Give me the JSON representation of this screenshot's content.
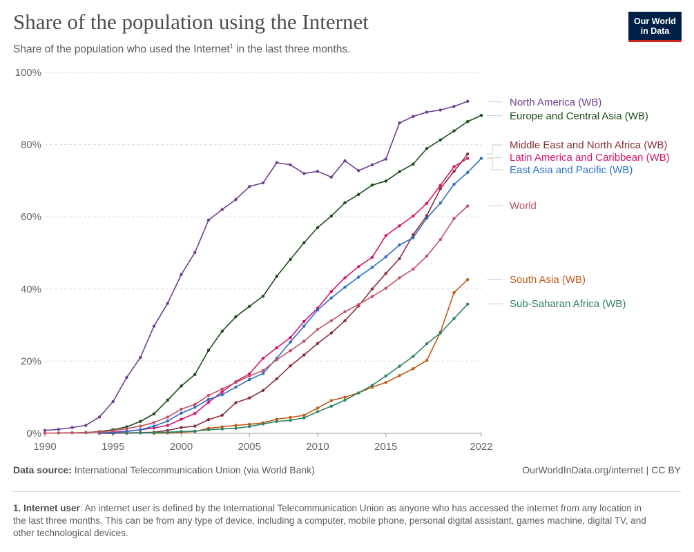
{
  "header": {
    "title": "Share of the population using the Internet",
    "subtitle_pre": "Share of the population who used the Internet",
    "subtitle_sup": "1",
    "subtitle_post": " in the last three months.",
    "logo_line1": "Our World",
    "logo_line2": "in Data"
  },
  "footer": {
    "source_label": "Data source:",
    "source_text": " International Telecommunication Union (via World Bank)",
    "url_license": "OurWorldInData.org/internet | CC BY",
    "footnote_label": "1. Internet user",
    "footnote_text": ": An internet user is defined by the International Telecommunication Union as anyone who has accessed the internet from any location in the last three months. This can be from any type of device, including a computer, mobile phone, personal digital assistant, games machine, digital TV, and other technological devices."
  },
  "chart_data": {
    "type": "line",
    "title": "Share of the population using the Internet",
    "xlim": [
      1990,
      2022
    ],
    "ylim": [
      0,
      100
    ],
    "x_ticks": [
      "1990",
      "1995",
      "2000",
      "2005",
      "2010",
      "2015",
      "2022"
    ],
    "x_tick_values": [
      1990,
      1995,
      2000,
      2005,
      2010,
      2015,
      2022
    ],
    "y_ticks": [
      "0%",
      "20%",
      "40%",
      "60%",
      "80%",
      "100%"
    ],
    "y_tick_values": [
      0,
      20,
      40,
      60,
      80,
      100
    ],
    "grid": "horizontal dashed",
    "legend": "right, inline labels",
    "series": [
      {
        "name": "North America (WB)",
        "color": "#6d3e91",
        "start": 1990,
        "values": [
          0.8,
          1.1,
          1.6,
          2.2,
          4.5,
          8.8,
          15.5,
          21,
          29.7,
          36,
          44,
          50.1,
          59.1,
          62,
          64.8,
          68.4,
          69.4,
          75,
          74.4,
          72,
          72.6,
          71,
          75.5,
          72.8,
          74.4,
          76,
          86,
          87.8,
          89,
          89.6,
          90.6,
          92
        ]
      },
      {
        "name": "Europe and Central Asia (WB)",
        "color": "#1a4d1a",
        "start": 1993,
        "values": [
          0.2,
          0.5,
          1.0,
          1.8,
          3.3,
          5.4,
          9.2,
          13.1,
          16.3,
          23,
          28.3,
          32.3,
          35.2,
          38,
          43.5,
          48.2,
          52.8,
          57,
          60.2,
          63.9,
          66.2,
          68.8,
          69.9,
          72.5,
          74.6,
          78.9,
          81.3,
          83.8,
          86.4,
          88.1
        ]
      },
      {
        "name": "Middle East and North Africa (WB)",
        "color": "#883039",
        "start": 1994,
        "values": [
          0,
          0,
          0.1,
          0.2,
          0.3,
          0.8,
          1.6,
          2.0,
          3.8,
          5.0,
          8.5,
          9.8,
          11.9,
          15.1,
          18.7,
          21.7,
          24.9,
          27.8,
          31.2,
          35.3,
          40,
          44.3,
          48.4,
          55,
          60.3,
          67.8,
          72.6,
          77.4
        ]
      },
      {
        "name": "Latin America and Caribbean (WB)",
        "color": "#d6136b",
        "start": 1994,
        "values": [
          0.1,
          0.3,
          0.6,
          1.0,
          1.5,
          2.2,
          3.9,
          5.5,
          8.6,
          11.5,
          14.3,
          16.5,
          20.8,
          23.7,
          26.5,
          31,
          34.7,
          39.3,
          43.1,
          46.2,
          48.8,
          54.8,
          57.5,
          60.2,
          63.7,
          68.7,
          73.9,
          76.2
        ]
      },
      {
        "name": "East Asia and Pacific (WB)",
        "color": "#2c6fc2",
        "start": 1994,
        "values": [
          0.1,
          0.2,
          0.5,
          1.0,
          2.0,
          3.4,
          5.6,
          7.2,
          9.4,
          10.7,
          12.8,
          14.9,
          16.6,
          20.8,
          25.3,
          29.7,
          34.2,
          37.5,
          40.5,
          43.3,
          46,
          48.9,
          52.2,
          54.2,
          59.6,
          63.8,
          69,
          72.3,
          76.2
        ]
      },
      {
        "name": "World",
        "color": "#c15065",
        "start": 1990,
        "values": [
          0.05,
          0.1,
          0.15,
          0.25,
          0.4,
          0.7,
          1.3,
          2.0,
          3.0,
          4.5,
          6.7,
          8.0,
          10.5,
          12.3,
          14.1,
          15.9,
          17.4,
          20.4,
          22.9,
          25.5,
          28.8,
          31.2,
          33.7,
          35.7,
          37.9,
          40.2,
          43.1,
          45.5,
          49.1,
          53.7,
          59.5,
          63
        ]
      },
      {
        "name": "South Asia (WB)",
        "color": "#c05917",
        "start": 1998,
        "values": [
          0,
          0.1,
          0.3,
          0.5,
          1.4,
          1.8,
          2.2,
          2.5,
          2.9,
          3.9,
          4.4,
          5.0,
          7.0,
          9.1,
          10.0,
          11.2,
          12.8,
          14.1,
          16.0,
          17.9,
          20.2,
          28,
          39,
          42.6
        ]
      },
      {
        "name": "Sub-Saharan Africa (WB)",
        "color": "#2c8465",
        "start": 1996,
        "values": [
          0,
          0.1,
          0.2,
          0.3,
          0.5,
          0.6,
          1.0,
          1.2,
          1.4,
          1.9,
          2.6,
          3.3,
          3.6,
          4.3,
          6.0,
          7.5,
          9.2,
          11.2,
          13.3,
          15.9,
          18.6,
          21.3,
          24.8,
          27.8,
          31.8,
          35.8
        ]
      }
    ]
  }
}
